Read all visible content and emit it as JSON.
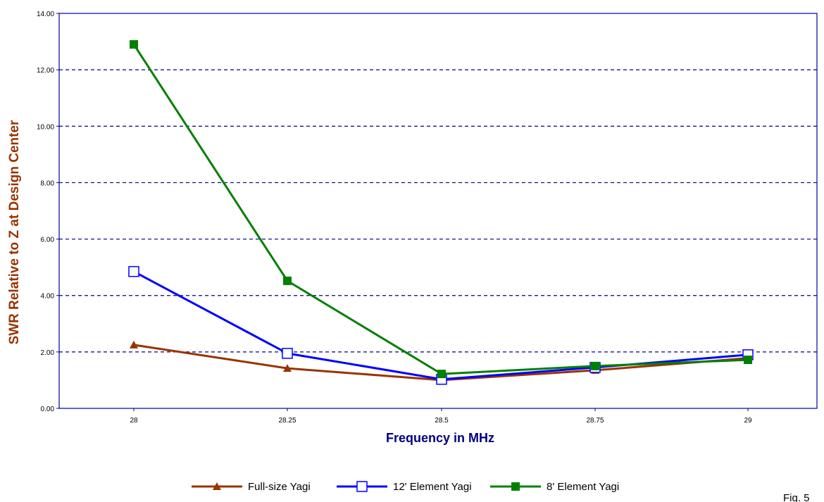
{
  "chart_data": {
    "type": "line",
    "title": "",
    "xlabel": "Frequency in MHz",
    "ylabel": "SWR Relative to Z at Design Center",
    "categories": [
      "28",
      "28.25",
      "28.5",
      "28.75",
      "29"
    ],
    "x": [
      28,
      28.25,
      28.5,
      28.75,
      29
    ],
    "ylim": [
      0,
      14
    ],
    "yticks": [
      "0.00",
      "2.00",
      "4.00",
      "6.00",
      "8.00",
      "10.00",
      "12.00",
      "14.00"
    ],
    "grid": "horizontal dashed",
    "legend_position": "bottom",
    "series": [
      {
        "name": "Full-size Yagi",
        "values": [
          2.25,
          1.42,
          1.0,
          1.35,
          1.78
        ],
        "color": "#993300",
        "marker": "triangle"
      },
      {
        "name": "12' Element Yagi",
        "values": [
          4.85,
          1.95,
          1.03,
          1.45,
          1.9
        ],
        "color": "#0000ff",
        "marker": "open-square"
      },
      {
        "name": "8' Element Yagi",
        "values": [
          12.9,
          4.52,
          1.22,
          1.5,
          1.72
        ],
        "color": "#008000",
        "marker": "filled-square"
      }
    ],
    "annotations": [
      "Fig. 5"
    ]
  },
  "colors": {
    "axis": "#0000a0",
    "grid": "#000080",
    "ylabel": "#993300",
    "xlabel": "#000080"
  }
}
